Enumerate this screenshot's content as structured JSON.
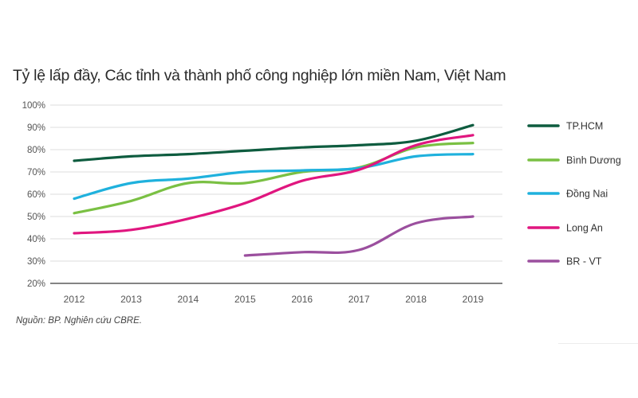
{
  "title": "Tỷ lệ lấp đầy, Các tỉnh và thành phố công nghiệp lớn miền Nam, Việt Nam",
  "source": "Nguồn: BP. Nghiên cứu CBRE.",
  "chart_data": {
    "type": "line",
    "title": "Tỷ lệ lấp đầy, Các tỉnh và thành phố công nghiệp lớn miền Nam, Việt Nam",
    "xlabel": "",
    "ylabel": "",
    "x": [
      "2012",
      "2013",
      "2014",
      "2015",
      "2016",
      "2017",
      "2018",
      "2019"
    ],
    "yticks": [
      "20%",
      "30%",
      "40%",
      "50%",
      "60%",
      "70%",
      "80%",
      "90%",
      "100%"
    ],
    "ylim": [
      20,
      100
    ],
    "grid": true,
    "legend_position": "right",
    "series": [
      {
        "name": "TP.HCM",
        "color": "#0e5c3f",
        "values": [
          75,
          77,
          78,
          79.5,
          81,
          82,
          84,
          91
        ]
      },
      {
        "name": "Bình Dương",
        "color": "#7ac043",
        "values": [
          51.5,
          57,
          65,
          65,
          70,
          72,
          81,
          83
        ]
      },
      {
        "name": "Đồng Nai",
        "color": "#1fb1dd",
        "values": [
          58,
          65,
          67,
          70,
          70.7,
          71.7,
          77,
          78
        ]
      },
      {
        "name": "Long An",
        "color": "#e0167f",
        "values": [
          42.5,
          44,
          49,
          56,
          66,
          71,
          82,
          86.5
        ]
      },
      {
        "name": "BR - VT",
        "color": "#9b4f9e",
        "values": [
          null,
          null,
          null,
          32.5,
          34,
          35,
          47,
          50
        ]
      }
    ],
    "source": "Nguồn: BP. Nghiên cứu CBRE."
  }
}
